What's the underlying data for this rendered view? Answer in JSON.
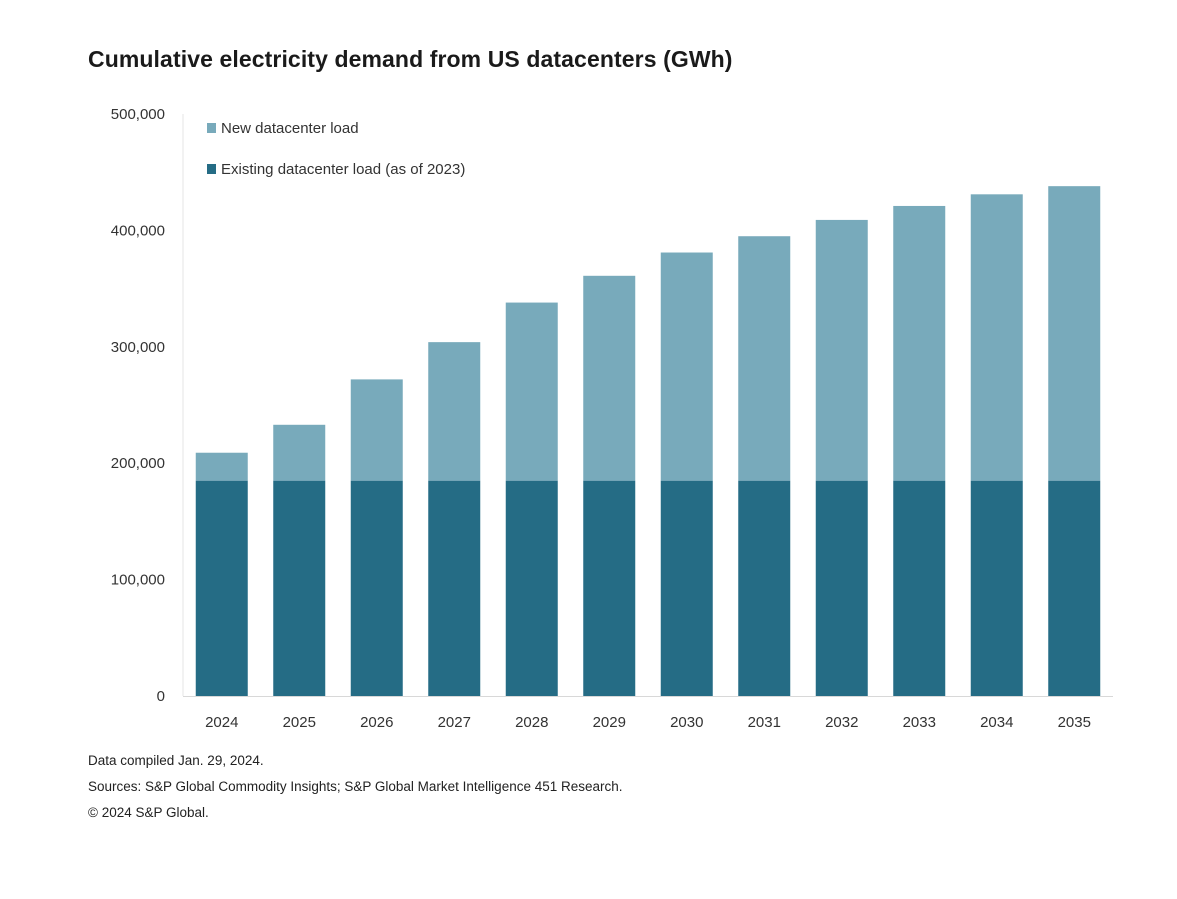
{
  "chart_data": {
    "type": "bar",
    "stacked": true,
    "title": "Cumulative electricity demand from US datacenters (GWh)",
    "xlabel": "",
    "ylabel": "",
    "categories": [
      "2024",
      "2025",
      "2026",
      "2027",
      "2028",
      "2029",
      "2030",
      "2031",
      "2032",
      "2033",
      "2034",
      "2035"
    ],
    "series": [
      {
        "name": "Existing datacenter load (as of 2023)",
        "color": "#256c85",
        "values": [
          185000,
          185000,
          185000,
          185000,
          185000,
          185000,
          185000,
          185000,
          185000,
          185000,
          185000,
          185000
        ]
      },
      {
        "name": "New datacenter load",
        "color": "#78aabb",
        "values": [
          24000,
          48000,
          87000,
          119000,
          153000,
          176000,
          196000,
          210000,
          224000,
          236000,
          246000,
          253000
        ]
      }
    ],
    "ylim": [
      0,
      500000
    ],
    "yticks": [
      "0",
      "100,000",
      "200,000",
      "300,000",
      "400,000",
      "500,000"
    ],
    "ytick_values": [
      0,
      100000,
      200000,
      300000,
      400000,
      500000
    ],
    "grid": false,
    "legend": [
      "New datacenter load",
      "Existing datacenter load (as of 2023)"
    ],
    "legend_position": "top-left"
  },
  "footnotes": [
    "Data compiled Jan. 29, 2024.",
    "Sources: S&P Global Commodity Insights; S&P Global Market Intelligence 451 Research.",
    "© 2024 S&P Global."
  ]
}
